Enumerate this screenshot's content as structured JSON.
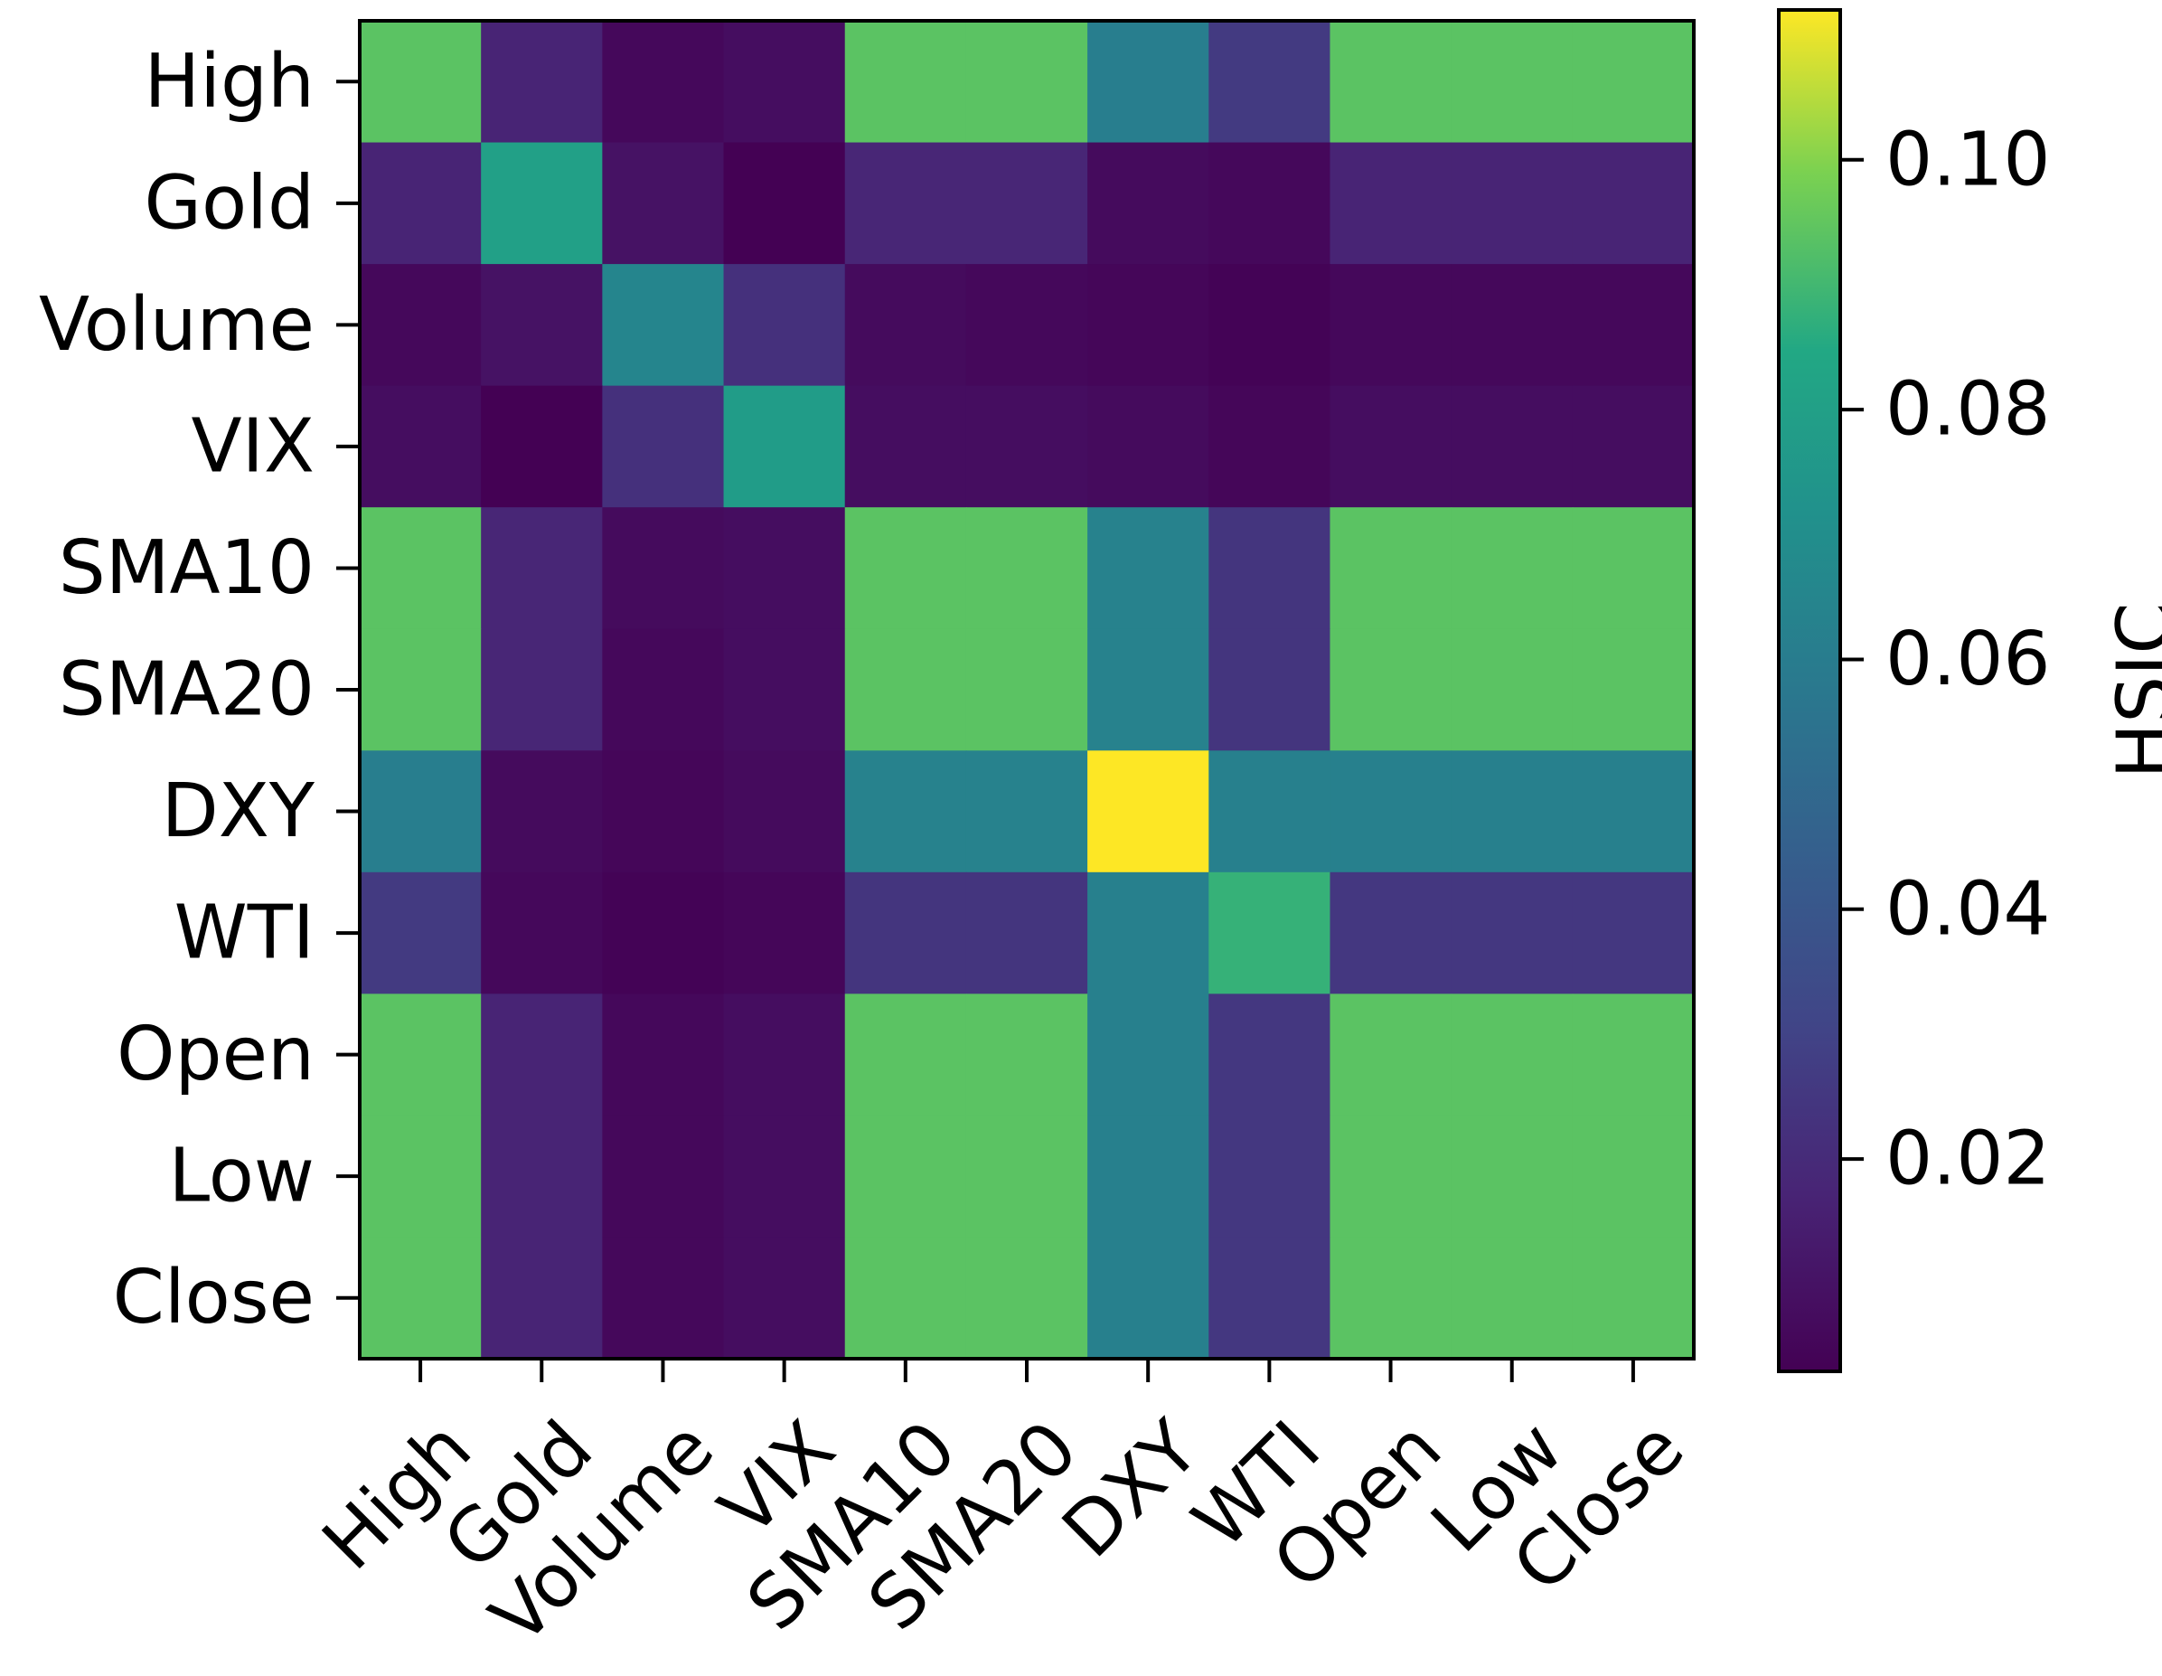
{
  "chart_data": {
    "type": "heatmap",
    "title": "",
    "xlabel": "",
    "ylabel": "",
    "x_labels": [
      "High",
      "Gold",
      "Volume",
      "VIX",
      "SMA10",
      "SMA20",
      "DXY",
      "WTI",
      "Open",
      "Low",
      "Close"
    ],
    "y_labels": [
      "High",
      "Gold",
      "Volume",
      "VIX",
      "SMA10",
      "SMA20",
      "DXY",
      "WTI",
      "Open",
      "Low",
      "Close"
    ],
    "values": [
      [
        0.094,
        0.017,
        0.006,
        0.008,
        0.094,
        0.094,
        0.061,
        0.026,
        0.094,
        0.094,
        0.094
      ],
      [
        0.017,
        0.08,
        0.01,
        0.003,
        0.018,
        0.018,
        0.007,
        0.006,
        0.017,
        0.017,
        0.017
      ],
      [
        0.006,
        0.01,
        0.065,
        0.022,
        0.007,
        0.006,
        0.005,
        0.004,
        0.006,
        0.006,
        0.006
      ],
      [
        0.008,
        0.003,
        0.022,
        0.078,
        0.008,
        0.008,
        0.007,
        0.005,
        0.008,
        0.008,
        0.008
      ],
      [
        0.094,
        0.018,
        0.007,
        0.008,
        0.094,
        0.094,
        0.063,
        0.024,
        0.094,
        0.094,
        0.094
      ],
      [
        0.094,
        0.018,
        0.006,
        0.008,
        0.094,
        0.094,
        0.063,
        0.024,
        0.094,
        0.094,
        0.094
      ],
      [
        0.061,
        0.007,
        0.005,
        0.007,
        0.063,
        0.063,
        0.112,
        0.062,
        0.062,
        0.062,
        0.062
      ],
      [
        0.026,
        0.006,
        0.004,
        0.005,
        0.024,
        0.024,
        0.062,
        0.088,
        0.025,
        0.025,
        0.025
      ],
      [
        0.094,
        0.017,
        0.006,
        0.008,
        0.094,
        0.094,
        0.062,
        0.025,
        0.094,
        0.094,
        0.094
      ],
      [
        0.094,
        0.017,
        0.006,
        0.008,
        0.094,
        0.094,
        0.062,
        0.025,
        0.094,
        0.094,
        0.094
      ],
      [
        0.094,
        0.017,
        0.006,
        0.008,
        0.094,
        0.094,
        0.062,
        0.025,
        0.094,
        0.094,
        0.094
      ]
    ],
    "colormap": "viridis",
    "colorbar": {
      "label": "HSIC",
      "range": [
        0.003,
        0.112
      ],
      "ticks": [
        0.02,
        0.04,
        0.06,
        0.08,
        0.1
      ],
      "tick_labels": [
        "0.02",
        "0.04",
        "0.06",
        "0.08",
        "0.10"
      ]
    }
  }
}
